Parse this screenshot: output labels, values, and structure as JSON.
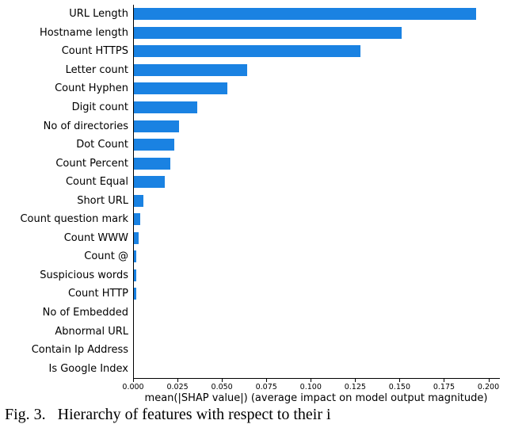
{
  "chart_data": {
    "type": "bar",
    "orientation": "horizontal",
    "title": "",
    "categories": [
      "URL Length",
      "Hostname length",
      "Count HTTPS",
      "Letter count",
      "Count Hyphen",
      "Digit count",
      "No of directories",
      "Dot Count",
      "Count Percent",
      "Count Equal",
      "Short URL",
      "Count question mark",
      "Count WWW",
      "Count @",
      "Suspicious words",
      "Count HTTP",
      "No of Embedded",
      "Abnormal URL",
      "Contain Ip Address",
      "Is Google Index"
    ],
    "values": [
      0.193,
      0.151,
      0.128,
      0.064,
      0.053,
      0.036,
      0.026,
      0.023,
      0.021,
      0.018,
      0.006,
      0.004,
      0.003,
      0.002,
      0.002,
      0.002,
      0.0005,
      0.0003,
      0.0002,
      0.0001
    ],
    "xlabel": "mean(|SHAP value|) (average impact on model output magnitude)",
    "ylabel": "",
    "xlim": [
      0,
      0.206
    ],
    "xticks": [
      0,
      0.025,
      0.05,
      0.075,
      0.1,
      0.125,
      0.15,
      0.175,
      0.2
    ],
    "xtick_labels": [
      "0.000",
      "0.025",
      "0.050",
      "0.075",
      "0.100",
      "0.125",
      "0.150",
      "0.175",
      "0.200"
    ],
    "grid": false,
    "legend": "none",
    "bar_color": "#1a82e2",
    "axis_color": "#000000"
  },
  "caption": "Fig. 3.   Hierarchy of features with respect to their i"
}
